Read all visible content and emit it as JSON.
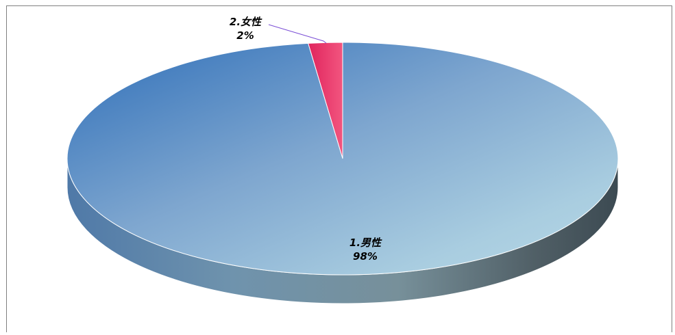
{
  "chart_data": {
    "type": "pie",
    "categories": [
      "1.男性",
      "2.女性"
    ],
    "values": [
      98,
      2
    ],
    "value_labels": [
      "98%",
      "2%"
    ],
    "colors": [
      "#5b8cc4",
      "#e8336a"
    ],
    "title": "",
    "legend": "none"
  }
}
